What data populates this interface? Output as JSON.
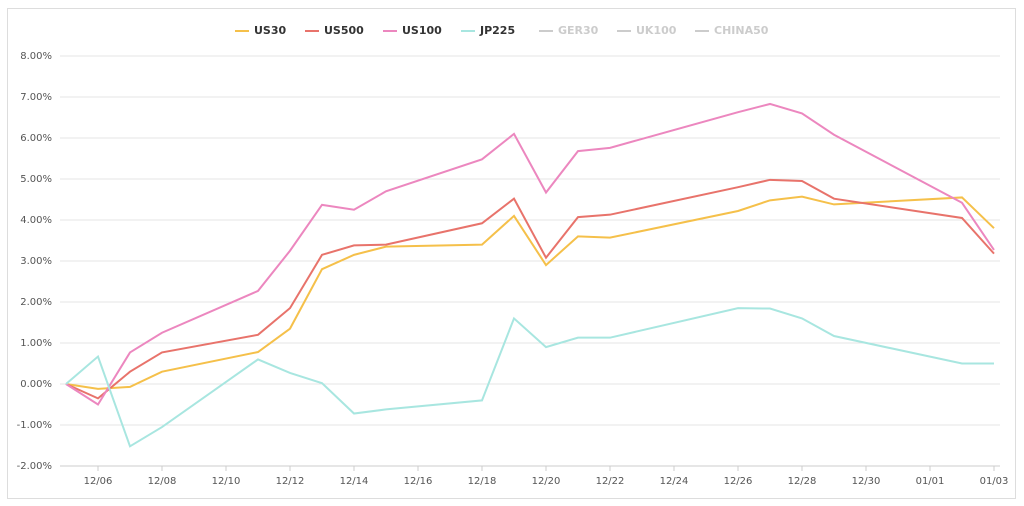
{
  "chart_data": {
    "type": "line",
    "x": [
      "12/05",
      "12/06",
      "12/07",
      "12/08",
      "12/11",
      "12/12",
      "12/13",
      "12/14",
      "12/15",
      "12/18",
      "12/19",
      "12/20",
      "12/21",
      "12/22",
      "12/26",
      "12/27",
      "12/28",
      "12/29",
      "01/02",
      "01/03"
    ],
    "series": [
      {
        "name": "US30",
        "color": "#f5c04a",
        "values": [
          0,
          -0.12,
          -0.07,
          0.3,
          0.78,
          1.35,
          2.8,
          3.15,
          3.35,
          3.4,
          4.1,
          2.9,
          3.6,
          3.57,
          4.22,
          4.48,
          4.57,
          4.38,
          4.55,
          3.8
        ]
      },
      {
        "name": "US500",
        "color": "#e8736b",
        "values": [
          0,
          -0.35,
          0.3,
          0.77,
          1.2,
          1.85,
          3.15,
          3.38,
          3.4,
          3.92,
          4.52,
          3.08,
          4.07,
          4.13,
          4.8,
          4.98,
          4.95,
          4.52,
          4.05,
          3.18
        ]
      },
      {
        "name": "US100",
        "color": "#ec87bf",
        "values": [
          0,
          -0.5,
          0.77,
          1.25,
          2.27,
          3.25,
          4.37,
          4.25,
          4.7,
          5.48,
          6.1,
          4.67,
          5.68,
          5.76,
          6.63,
          6.83,
          6.6,
          6.08,
          4.42,
          3.27
        ]
      },
      {
        "name": "JP225",
        "color": "#a8e6e0",
        "values": [
          0,
          0.67,
          -1.52,
          -1.05,
          0.6,
          0.27,
          0.02,
          -0.72,
          -0.62,
          -0.4,
          1.6,
          0.9,
          1.13,
          1.13,
          1.85,
          1.84,
          1.6,
          1.17,
          0.5,
          0.5
        ]
      }
    ],
    "hidden_series": [
      {
        "name": "GER30",
        "color": "#cccccc"
      },
      {
        "name": "UK100",
        "color": "#cccccc"
      },
      {
        "name": "CHINA50",
        "color": "#cccccc"
      }
    ],
    "xticks": [
      "12/06",
      "12/08",
      "12/10",
      "12/12",
      "12/14",
      "12/16",
      "12/18",
      "12/20",
      "12/22",
      "12/24",
      "12/26",
      "12/28",
      "12/30",
      "01/01",
      "01/03"
    ],
    "ylim": [
      -2,
      8
    ],
    "yticks": [
      {
        "value": -2,
        "label": "-2.00%"
      },
      {
        "value": -1,
        "label": "-1.00%"
      },
      {
        "value": 0,
        "label": "0.00%"
      },
      {
        "value": 1,
        "label": "1.00%"
      },
      {
        "value": 2,
        "label": "2.00%"
      },
      {
        "value": 3,
        "label": "3.00%"
      },
      {
        "value": 4,
        "label": "4.00%"
      },
      {
        "value": 5,
        "label": "5.00%"
      },
      {
        "value": 6,
        "label": "6.00%"
      },
      {
        "value": 7,
        "label": "7.00%"
      },
      {
        "value": 8,
        "label": "8.00%"
      }
    ],
    "grid": true
  }
}
